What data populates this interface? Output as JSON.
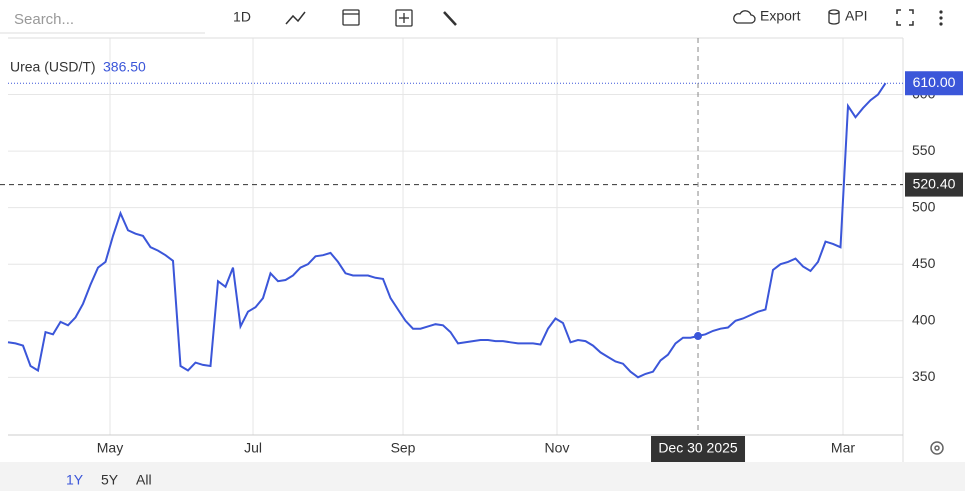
{
  "toolbar": {
    "search_placeholder": "Search...",
    "interval": "1D",
    "export": "Export",
    "api": "API"
  },
  "range_buttons": [
    "1Y",
    "5Y",
    "All"
  ],
  "chart_data": {
    "type": "line",
    "series": [
      {
        "name": "Urea (USD/T)",
        "color": "#3b56d9",
        "values": [
          381,
          380,
          378,
          360,
          356,
          390,
          388,
          399,
          396,
          403,
          415,
          432,
          447,
          452,
          475,
          495,
          480,
          477,
          475,
          465,
          462,
          458,
          453,
          360,
          356,
          363,
          361,
          360,
          435,
          430,
          447,
          395,
          408,
          412,
          420,
          442,
          435,
          436,
          440,
          447,
          450,
          457,
          458,
          460,
          452,
          442,
          440,
          440,
          440,
          438,
          437,
          420,
          410,
          400,
          393,
          393,
          395,
          397,
          396,
          390,
          380,
          381,
          382,
          383,
          383,
          382,
          382,
          381,
          380,
          380,
          380,
          379,
          393,
          402,
          398,
          381,
          383,
          382,
          378,
          372,
          368,
          364,
          362,
          355,
          350,
          353,
          355,
          365,
          370,
          380,
          385,
          385,
          386.5,
          388,
          391,
          393,
          394,
          400,
          402,
          405,
          408,
          410,
          445,
          450,
          452,
          455,
          448,
          444,
          452,
          470,
          468,
          465,
          590,
          580,
          588,
          595,
          600,
          610
        ]
      }
    ],
    "hover": {
      "index": 92,
      "label": "386.50",
      "date": "Dec 30 2025"
    },
    "last_value_label": "610.00",
    "cursor_y": {
      "value": 520.4,
      "label": "520.40"
    },
    "xlim": [
      0,
      119.33
    ],
    "xticks": [
      {
        "value": 13.6,
        "label": "May"
      },
      {
        "value": 32.67,
        "label": "Jul"
      },
      {
        "value": 52.67,
        "label": "Sep"
      },
      {
        "value": 73.2,
        "label": "Nov"
      },
      {
        "value": 111.33,
        "label": "Mar"
      }
    ],
    "ylim": [
      299,
      650
    ],
    "yticks": [
      350,
      400,
      450,
      500,
      550,
      600
    ],
    "grid": true
  }
}
